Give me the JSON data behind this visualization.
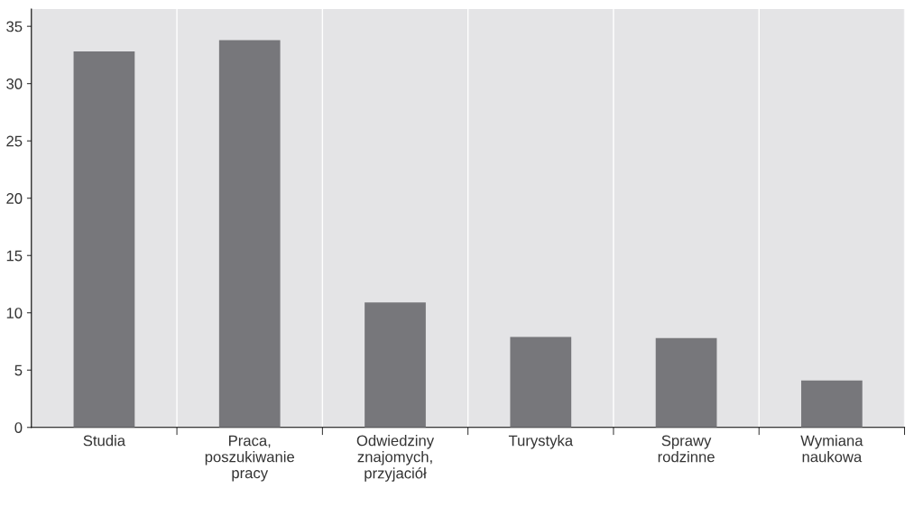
{
  "chart_data": {
    "type": "bar",
    "categories": [
      "Studia",
      "Praca,\nposzukiwanie\npracy",
      "Odwiedziny\nznajomych,\nprzyjaciół",
      "Turystyka",
      "Sprawy\nrodzinne",
      "Wymiana\nnaukowa"
    ],
    "values": [
      32.8,
      33.8,
      10.9,
      7.9,
      7.8,
      4.1
    ],
    "color": "#77777b",
    "ylim": [
      0,
      36.5
    ],
    "yticks": [
      0,
      5,
      10,
      15,
      20,
      25,
      30,
      35
    ],
    "grid": "x"
  }
}
